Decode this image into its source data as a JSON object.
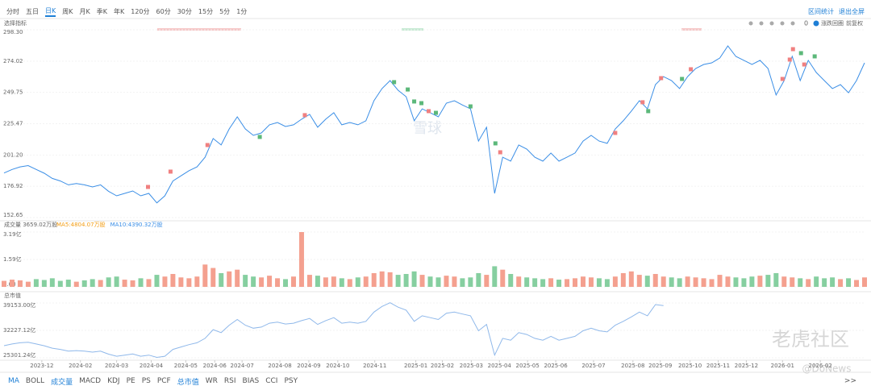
{
  "toolbar": {
    "periods": [
      "分时",
      "五日",
      "日K",
      "周K",
      "月K",
      "季K",
      "年K",
      "120分",
      "60分",
      "30分",
      "15分",
      "5分",
      "1分"
    ],
    "selected_period": 2,
    "actions": [
      "区间统计",
      "退出全屏"
    ]
  },
  "indicator_select": "选择指标",
  "controls": {
    "count": "0",
    "toggle": "涨跌回圈",
    "adjust": "前复权"
  },
  "indicators": [
    "MA",
    "BOLL",
    "成交量",
    "MACD",
    "KDJ",
    "PE",
    "PS",
    "PCF",
    "总市值",
    "WR",
    "RSI",
    "BIAS",
    "CCI",
    "PSY"
  ],
  "active_indicators": [
    0,
    2,
    8
  ],
  "more": ">>",
  "watermarks": [
    "雪球",
    "老虎社区",
    "@DoNews"
  ],
  "chart_data": [
    {
      "type": "line",
      "color": "#3a8ee6",
      "xlim": [
        0,
        107
      ],
      "ylim": [
        152.65,
        298.3
      ],
      "yticks": [
        {
          "value": 298.3,
          "label": "298.30"
        },
        {
          "value": 274.02,
          "label": "274.02"
        },
        {
          "value": 249.75,
          "label": "249.75"
        },
        {
          "value": 225.47,
          "label": "225.47"
        },
        {
          "value": 201.2,
          "label": "201.20"
        },
        {
          "value": 176.92,
          "label": "176.92"
        },
        {
          "value": 152.65,
          "label": "152.65"
        }
      ],
      "values": [
        187.2,
        190,
        192,
        193,
        190,
        187,
        183,
        181,
        178,
        179,
        178,
        176.4,
        178,
        173,
        169.5,
        171.4,
        173.3,
        169.5,
        171.4,
        164,
        169.5,
        181,
        185,
        189,
        192,
        199.5,
        214,
        209,
        221.4,
        230.8,
        221.4,
        216.4,
        218.3,
        224.6,
        226.4,
        223.3,
        224.6,
        229,
        232.7,
        222.7,
        229,
        234,
        224.6,
        226.4,
        224.6,
        227.7,
        243.3,
        252.7,
        258.9,
        251.4,
        246.4,
        227.7,
        237,
        234,
        230.8,
        241.4,
        243.3,
        240,
        237,
        212,
        222.7,
        171.4,
        199.5,
        196.4,
        209,
        205.8,
        199.5,
        196.4,
        202.7,
        196.4,
        199.5,
        202.7,
        212,
        216.4,
        212,
        210.2,
        221.4,
        227.7,
        235.2,
        243.3,
        237,
        255.8,
        262,
        258.9,
        252.7,
        262,
        268.3,
        271.4,
        272.7,
        276.4,
        285.8,
        277.7,
        274.6,
        271.4,
        274.6,
        268.3,
        247.7,
        258.9,
        277.7,
        258.9,
        274.6,
        265.2,
        258.9,
        252.7,
        255.8,
        249.5,
        258.9,
        272.7
      ],
      "signals": [
        {
          "x": 17.9,
          "value": 176.4,
          "color": "#f08080"
        },
        {
          "x": 20.7,
          "value": 188.3,
          "color": "#f08080"
        },
        {
          "x": 25.3,
          "value": 208.9,
          "color": "#f08080"
        },
        {
          "x": 37.4,
          "value": 232.1,
          "color": "#f08080"
        },
        {
          "x": 52.8,
          "value": 235.2,
          "color": "#f08080"
        },
        {
          "x": 61.7,
          "value": 203.3,
          "color": "#f08080"
        },
        {
          "x": 76.0,
          "value": 218.3,
          "color": "#f08080"
        },
        {
          "x": 79.4,
          "value": 242.1,
          "color": "#f08080"
        },
        {
          "x": 81.7,
          "value": 260.8,
          "color": "#f08080"
        },
        {
          "x": 85.4,
          "value": 267.7,
          "color": "#f08080"
        },
        {
          "x": 96.8,
          "value": 260.2,
          "color": "#f08080"
        },
        {
          "x": 97.7,
          "value": 275.2,
          "color": "#f08080"
        },
        {
          "x": 98.1,
          "value": 283.3,
          "color": "#f08080"
        },
        {
          "x": 99.5,
          "value": 271.4,
          "color": "#f08080"
        },
        {
          "x": 31.8,
          "value": 215.2,
          "color": "#5cb87a"
        },
        {
          "x": 48.5,
          "value": 257.7,
          "color": "#5cb87a"
        },
        {
          "x": 50.2,
          "value": 252.0,
          "color": "#5cb87a"
        },
        {
          "x": 51.0,
          "value": 242.7,
          "color": "#5cb87a"
        },
        {
          "x": 51.9,
          "value": 241.4,
          "color": "#5cb87a"
        },
        {
          "x": 53.7,
          "value": 233.9,
          "color": "#5cb87a"
        },
        {
          "x": 58.0,
          "value": 238.9,
          "color": "#5cb87a"
        },
        {
          "x": 61.1,
          "value": 210.2,
          "color": "#5cb87a"
        },
        {
          "x": 80.1,
          "value": 235.2,
          "color": "#5cb87a"
        },
        {
          "x": 84.3,
          "value": 260.2,
          "color": "#5cb87a"
        },
        {
          "x": 99.1,
          "value": 280.2,
          "color": "#5cb87a"
        },
        {
          "x": 100.8,
          "value": 277.7,
          "color": "#5cb87a"
        }
      ]
    },
    {
      "type": "bar",
      "title": "成交量 3659.02万股",
      "legend": [
        {
          "label": "MA5:4804.07万股",
          "color": "#f39c12"
        },
        {
          "label": "MA10:4390.32万股",
          "color": "#3a8ee6"
        }
      ],
      "up_color": "#f4a08f",
      "down_color": "#86cfa0",
      "xlim": [
        0,
        107
      ],
      "ylim": [
        0,
        3.19
      ],
      "yticks": [
        {
          "value": 3.19,
          "label": "3.19亿"
        },
        {
          "value": 1.59,
          "label": "1.59亿"
        },
        {
          "value": 0,
          "label": "0.00"
        }
      ],
      "values": [
        0.35,
        0.42,
        0.38,
        0.3,
        0.45,
        0.4,
        0.5,
        0.35,
        0.42,
        0.3,
        0.38,
        0.45,
        0.4,
        0.55,
        0.6,
        0.42,
        0.38,
        0.5,
        0.45,
        0.7,
        0.6,
        0.75,
        0.55,
        0.5,
        0.6,
        1.3,
        1.1,
        0.8,
        0.9,
        1.0,
        0.7,
        0.6,
        0.55,
        0.65,
        0.5,
        0.45,
        0.6,
        3.19,
        0.7,
        0.65,
        0.55,
        0.6,
        0.5,
        0.45,
        0.55,
        0.6,
        0.8,
        0.9,
        0.85,
        0.7,
        0.75,
        0.9,
        0.7,
        0.6,
        0.55,
        0.65,
        0.6,
        0.5,
        0.55,
        0.8,
        0.7,
        1.2,
        1.0,
        0.75,
        0.6,
        0.55,
        0.5,
        0.45,
        0.5,
        0.42,
        0.45,
        0.5,
        0.6,
        0.55,
        0.5,
        0.45,
        0.6,
        0.8,
        0.9,
        0.7,
        0.65,
        0.75,
        0.6,
        0.55,
        0.5,
        0.6,
        0.55,
        0.5,
        0.45,
        0.7,
        0.6,
        0.55,
        0.5,
        0.6,
        0.65,
        0.7,
        0.8,
        0.6,
        0.55,
        0.5,
        0.45,
        0.6,
        0.5,
        0.55,
        0.45,
        0.5,
        0.4,
        0.55
      ]
    },
    {
      "type": "line",
      "title": "总市值",
      "color": "#8fb8ea",
      "xlim": [
        0,
        107
      ],
      "ylim": [
        25301.24,
        39153.0
      ],
      "yticks": [
        {
          "value": 39153.0,
          "label": "39153.00亿"
        },
        {
          "value": 32227.12,
          "label": "32227.12亿"
        },
        {
          "value": 25301.24,
          "label": "25301.24亿"
        }
      ],
      "xticks": [
        {
          "value": 4.7,
          "label": "2023-12"
        },
        {
          "value": 9.5,
          "label": "2024-02"
        },
        {
          "value": 14,
          "label": "2024-03"
        },
        {
          "value": 18.3,
          "label": "2024-04"
        },
        {
          "value": 22.6,
          "label": "2024-05"
        },
        {
          "value": 26.2,
          "label": "2024-06"
        },
        {
          "value": 29.6,
          "label": "2024-07"
        },
        {
          "value": 34.3,
          "label": "2024-08"
        },
        {
          "value": 37.9,
          "label": "2024-09"
        },
        {
          "value": 41.5,
          "label": "2024-10"
        },
        {
          "value": 46.1,
          "label": "2024-11"
        },
        {
          "value": 51.2,
          "label": "2025-01"
        },
        {
          "value": 54.5,
          "label": "2025-02"
        },
        {
          "value": 58.1,
          "label": "2025-03"
        },
        {
          "value": 61.6,
          "label": "2025-04"
        },
        {
          "value": 65.1,
          "label": "2025-05"
        },
        {
          "value": 68.6,
          "label": "2025-06"
        },
        {
          "value": 73.3,
          "label": "2025-07"
        },
        {
          "value": 78.2,
          "label": "2025-08"
        },
        {
          "value": 81.6,
          "label": "2025-09"
        },
        {
          "value": 85.3,
          "label": "2025-10"
        },
        {
          "value": 88.8,
          "label": "2025-11"
        },
        {
          "value": 92.3,
          "label": "2025-12"
        },
        {
          "value": 96.8,
          "label": "2026-01"
        },
        {
          "value": 101.5,
          "label": "2026-02"
        }
      ],
      "values": [
        28360,
        28790,
        29090,
        29240,
        28790,
        28330,
        27720,
        27420,
        26970,
        27120,
        26970,
        26720,
        26970,
        26210,
        25680,
        25970,
        26250,
        25680,
        25970,
        25400,
        25680,
        27420,
        28030,
        28630,
        29090,
        30220,
        32420,
        31660,
        33540,
        34970,
        33540,
        32780,
        33070,
        34030,
        34300,
        33830,
        34030,
        34690,
        35250,
        33740,
        34690,
        35450,
        34030,
        34300,
        34030,
        34500,
        36860,
        38280,
        39220,
        38090,
        37330,
        34500,
        35910,
        35450,
        34970,
        36570,
        36860,
        36360,
        35910,
        32120,
        33740,
        25970,
        30220,
        29750,
        31660,
        31180,
        30220,
        29750,
        30710,
        29750,
        30220,
        30710,
        32120,
        32780,
        32120,
        31850,
        33540,
        34500,
        35630,
        36860,
        35910,
        38750,
        38500,
        null,
        null,
        null,
        null,
        null,
        null,
        null,
        null,
        null,
        null,
        null,
        null,
        null,
        null,
        null,
        null,
        null,
        null,
        null,
        null,
        null,
        null,
        null,
        null
      ]
    }
  ]
}
